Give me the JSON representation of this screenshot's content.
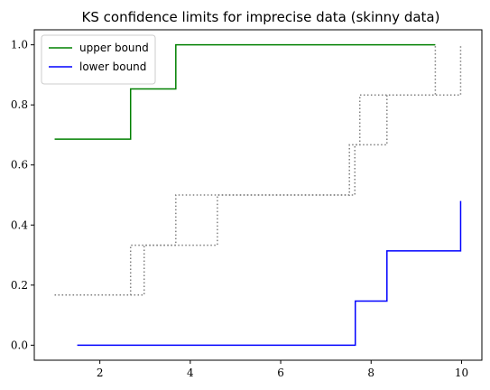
{
  "chart_data": {
    "type": "line",
    "title": "KS confidence limits for imprecise data (skinny data)",
    "xlabel": "",
    "ylabel": "",
    "xlim": [
      0.55,
      10.45
    ],
    "ylim": [
      -0.05,
      1.05
    ],
    "xticks": [
      2,
      4,
      6,
      8,
      10
    ],
    "yticks": [
      0.0,
      0.2,
      0.4,
      0.6,
      0.8,
      1.0
    ],
    "xtick_labels": [
      "2",
      "4",
      "6",
      "8",
      "10"
    ],
    "ytick_labels": [
      "0.0",
      "0.2",
      "0.4",
      "0.6",
      "0.8",
      "1.0"
    ],
    "grid": false,
    "legend_position": "top-left",
    "series": [
      {
        "name": "upper bound",
        "color": "#008000",
        "style": "solid",
        "x": [
          1.0,
          2.68,
          2.68,
          3.68,
          3.68,
          9.42
        ],
        "y": [
          0.686,
          0.686,
          0.853,
          0.853,
          1.0,
          1.0
        ]
      },
      {
        "name": "lower bound",
        "color": "#0000ff",
        "style": "solid",
        "x": [
          1.5,
          7.65,
          7.65,
          8.35,
          8.35,
          9.98,
          9.98
        ],
        "y": [
          0.0,
          0.0,
          0.147,
          0.147,
          0.314,
          0.314,
          0.48
        ]
      },
      {
        "color": "#808080",
        "style": "dotted",
        "x": [
          1.0,
          2.68,
          2.68,
          3.68,
          3.68,
          7.52,
          7.52,
          7.75,
          7.75,
          9.42,
          9.42
        ],
        "y": [
          0.167,
          0.167,
          0.333,
          0.333,
          0.5,
          0.5,
          0.667,
          0.667,
          0.833,
          0.833,
          1.0
        ]
      },
      {
        "color": "#808080",
        "style": "dotted",
        "x": [
          1.0,
          2.98,
          2.98,
          4.6,
          4.6,
          7.64,
          7.64,
          8.35,
          8.35,
          9.98,
          9.98
        ],
        "y": [
          0.167,
          0.167,
          0.333,
          0.333,
          0.5,
          0.5,
          0.667,
          0.667,
          0.833,
          0.833,
          1.0
        ]
      }
    ]
  }
}
